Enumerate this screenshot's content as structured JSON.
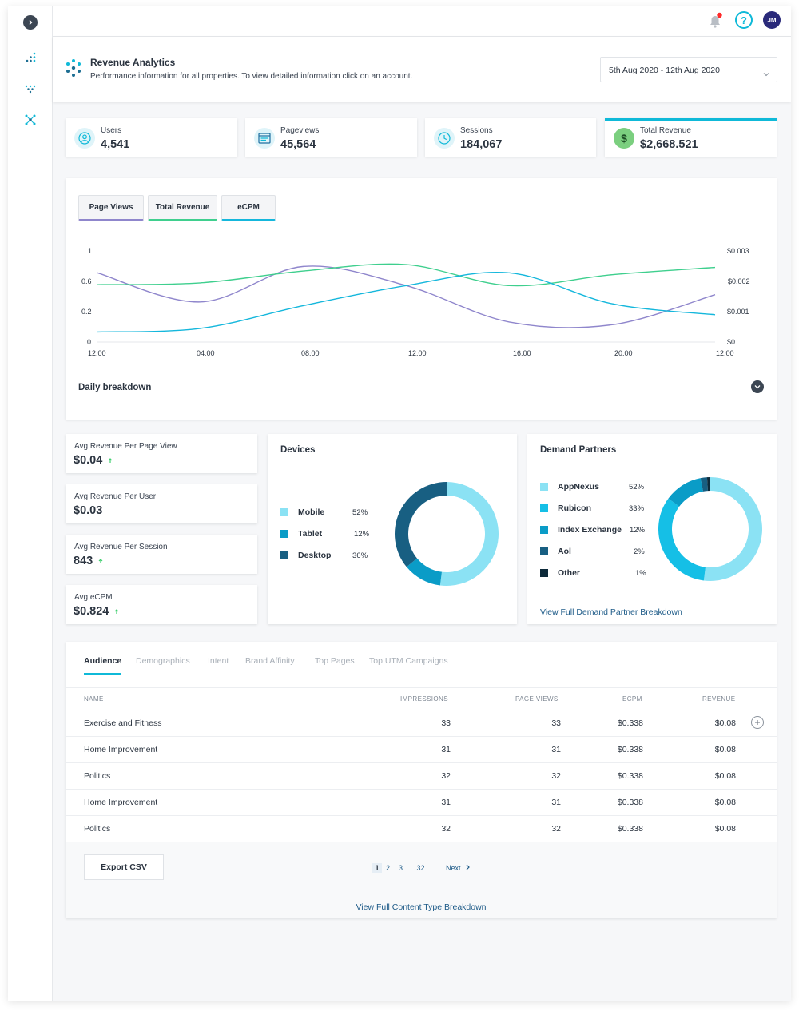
{
  "colors": {
    "accent": "#0fb9d8",
    "purple": "#8f86cc",
    "green": "#3fcf8e",
    "cyan": "#15b7dc",
    "lightcyan": "#8be2f4",
    "teal": "#0a9cc7",
    "darkteal": "#185f82",
    "navy": "#0d2a3a"
  },
  "sidebar": {
    "toggle_icon": "chevron-right-icon",
    "items": [
      {
        "icon": "dots-grid-icon"
      },
      {
        "icon": "dots-diamond-icon"
      },
      {
        "icon": "network-icon"
      }
    ]
  },
  "topbar": {
    "notification_icon": "bell-icon",
    "help_icon": "question-icon",
    "avatar_initials": "JM"
  },
  "header": {
    "title": "Revenue Analytics",
    "subtitle": "Performance information for all properties. To view detailed information click on an account.",
    "date_range": "5th Aug 2020 - 12th Aug 2020"
  },
  "stats": [
    {
      "label": "Users",
      "value": "4,541",
      "icon": "user-icon"
    },
    {
      "label": "Pageviews",
      "value": "45,564",
      "icon": "browser-icon"
    },
    {
      "label": "Sessions",
      "value": "184,067",
      "icon": "clock-icon"
    },
    {
      "label": "Total Revenue",
      "value": "$2,668.521",
      "icon": "dollar-icon"
    }
  ],
  "chart_tabs": [
    "Page Views",
    "Total Revenue",
    "eCPM"
  ],
  "chart_data": {
    "type": "line",
    "x": [
      "12:00",
      "04:00",
      "08:00",
      "12:00",
      "16:00",
      "20:00",
      "12:00"
    ],
    "y_left_ticks": [
      "1",
      "0.6",
      "0.2",
      "0"
    ],
    "y_right_ticks": [
      "$0.003",
      "$0.002",
      "$0.001",
      "$0"
    ],
    "ylim": [
      0,
      1
    ],
    "series": [
      {
        "color": "#8f86cc",
        "values": [
          0.76,
          0.44,
          0.83,
          0.62,
          0.22,
          0.19,
          0.52
        ]
      },
      {
        "color": "#3fcf8e",
        "values": [
          0.63,
          0.65,
          0.78,
          0.85,
          0.62,
          0.74,
          0.82
        ]
      },
      {
        "color": "#15b7dc",
        "values": [
          0.11,
          0.15,
          0.4,
          0.62,
          0.76,
          0.42,
          0.3
        ]
      }
    ]
  },
  "daily_breakdown": "Daily breakdown",
  "avg_cards": [
    {
      "label": "Avg Revenue Per Page View",
      "value": "$0.04",
      "trend": "up"
    },
    {
      "label": "Avg Revenue Per User",
      "value": "$0.03",
      "trend": ""
    },
    {
      "label": "Avg Revenue Per Session",
      "value": "843",
      "trend": "up"
    },
    {
      "label": "Avg eCPM",
      "value": "$0.824",
      "trend": "up"
    }
  ],
  "devices": {
    "title": "Devices",
    "items": [
      {
        "name": "Mobile",
        "pct": "52%",
        "value": 52,
        "color": "#8be2f4"
      },
      {
        "name": "Tablet",
        "pct": "12%",
        "value": 12,
        "color": "#0a9cc7"
      },
      {
        "name": "Desktop",
        "pct": "36%",
        "value": 36,
        "color": "#185f82"
      }
    ]
  },
  "partners": {
    "title": "Demand Partners",
    "items": [
      {
        "name": "AppNexus",
        "pct": "52%",
        "value": 52,
        "color": "#8be2f4"
      },
      {
        "name": "Rubicon",
        "pct": "33%",
        "value": 33,
        "color": "#15bfe6"
      },
      {
        "name": "Index Exchange",
        "pct": "12%",
        "value": 12,
        "color": "#0a9cc7"
      },
      {
        "name": "Aol",
        "pct": "2%",
        "value": 2,
        "color": "#185f82"
      },
      {
        "name": "Other",
        "pct": "1%",
        "value": 1,
        "color": "#0d2a3a"
      }
    ],
    "link": "View Full Demand Partner Breakdown"
  },
  "table": {
    "tabs": [
      "Audience",
      "Demographics",
      "Intent",
      "Brand Affinity",
      "Top Pages",
      "Top UTM Campaigns"
    ],
    "columns": [
      "NAME",
      "IMPRESSIONS",
      "PAGE VIEWS",
      "ECPM",
      "REVENUE"
    ],
    "rows": [
      [
        "Exercise and Fitness",
        "33",
        "33",
        "$0.338",
        "$0.08"
      ],
      [
        "Home Improvement",
        "31",
        "31",
        "$0.338",
        "$0.08"
      ],
      [
        "Politics",
        "32",
        "32",
        "$0.338",
        "$0.08"
      ],
      [
        "Home Improvement",
        "31",
        "31",
        "$0.338",
        "$0.08"
      ],
      [
        "Politics",
        "32",
        "32",
        "$0.338",
        "$0.08"
      ]
    ],
    "export_label": "Export CSV",
    "pages": [
      "1",
      "2",
      "3",
      "...32"
    ],
    "next_label": "Next",
    "footer_link": "View Full Content Type Breakdown"
  }
}
